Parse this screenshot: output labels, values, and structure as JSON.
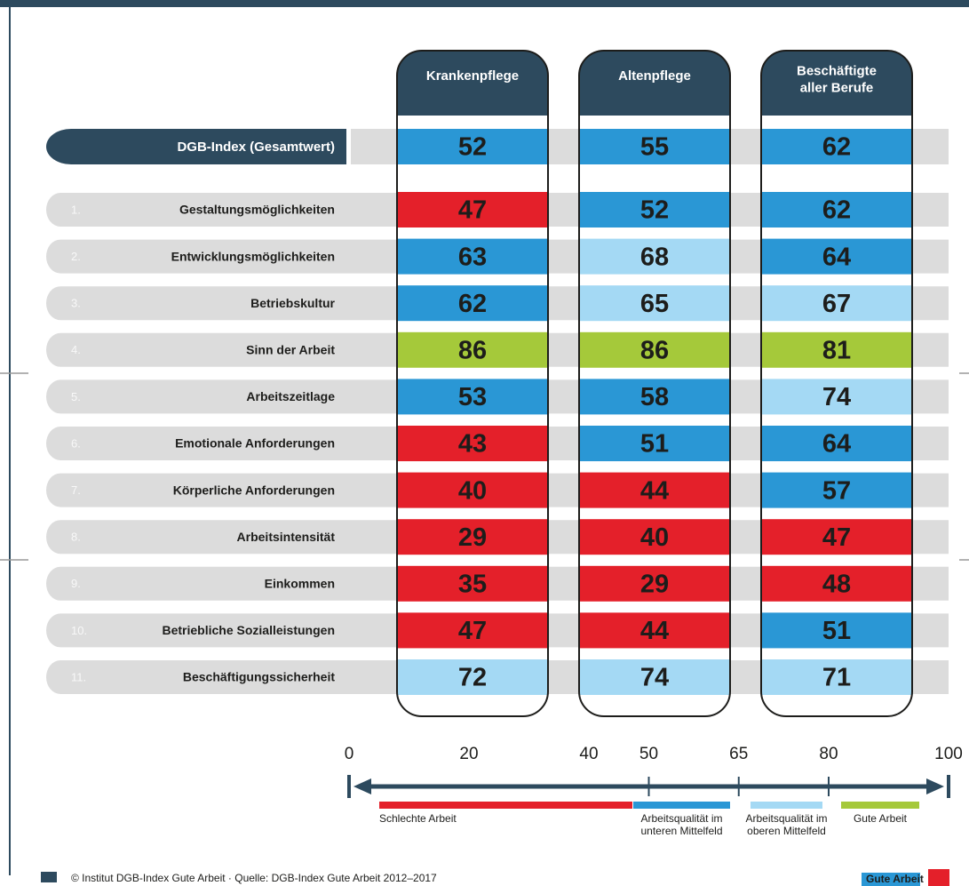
{
  "columns": [
    {
      "lines": [
        "Krankenpflege"
      ]
    },
    {
      "lines": [
        "Altenpflege"
      ]
    },
    {
      "lines": [
        "Beschäftigte",
        "aller Berufe"
      ]
    }
  ],
  "total_row": {
    "label": "DGB-Index",
    "sublabel": "(Gesamtwert)",
    "values": [
      52,
      55,
      62
    ]
  },
  "rows": [
    {
      "index": "1.",
      "label": "Gestaltungsmöglichkeiten",
      "values": [
        47,
        52,
        62
      ]
    },
    {
      "index": "2.",
      "label": "Entwicklungsmöglichkeiten",
      "values": [
        63,
        68,
        64
      ]
    },
    {
      "index": "3.",
      "label": "Betriebskultur",
      "values": [
        62,
        65,
        67
      ]
    },
    {
      "index": "4.",
      "label": "Sinn der Arbeit",
      "values": [
        86,
        86,
        81
      ]
    },
    {
      "index": "5.",
      "label": "Arbeitszeitlage",
      "values": [
        53,
        58,
        74
      ]
    },
    {
      "index": "6.",
      "label": "Emotionale Anforderungen",
      "values": [
        43,
        51,
        64
      ]
    },
    {
      "index": "7.",
      "label": "Körperliche Anforderungen",
      "values": [
        40,
        44,
        57
      ]
    },
    {
      "index": "8.",
      "label": "Arbeitsintensität",
      "values": [
        29,
        40,
        47
      ]
    },
    {
      "index": "9.",
      "label": "Einkommen",
      "values": [
        35,
        29,
        48
      ]
    },
    {
      "index": "10.",
      "label": "Betriebliche Sozialleistungen",
      "values": [
        47,
        44,
        51
      ]
    },
    {
      "index": "11.",
      "label": "Beschäftigungssicherheit",
      "values": [
        72,
        74,
        71
      ]
    }
  ],
  "scale": {
    "ticks": [
      0,
      20,
      40,
      50,
      65,
      80,
      100
    ],
    "bands": [
      {
        "lines": [
          "Schlechte Arbeit"
        ],
        "color": "#e4202a"
      },
      {
        "lines": [
          "Arbeitsqualität im",
          "unteren Mittelfeld"
        ],
        "color": "#2a97d5"
      },
      {
        "lines": [
          "Arbeitsqualität im",
          "oberen Mittelfeld"
        ],
        "color": "#a4d9f4"
      },
      {
        "lines": [
          "Gute Arbeit"
        ],
        "color": "#a5c93a"
      }
    ]
  },
  "footer": {
    "text": "© Institut DGB-Index Gute Arbeit · Quelle: DGB-Index Gute Arbeit 2012–2017",
    "logo": "Gute Arbeit"
  }
}
